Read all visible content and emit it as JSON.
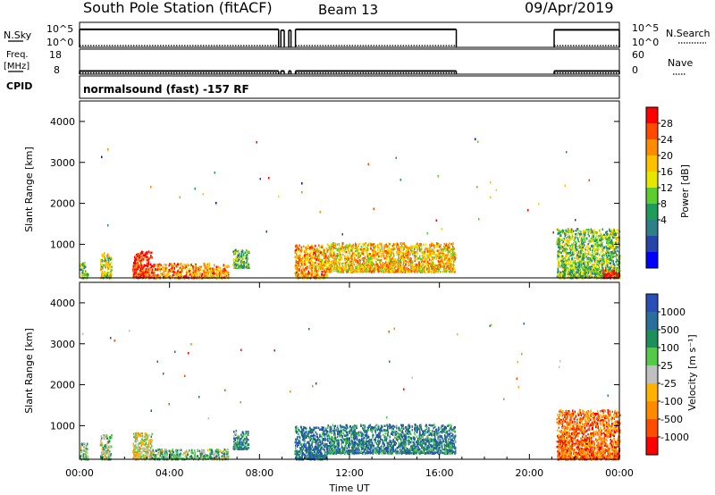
{
  "header": {
    "title": "South Pole Station (fitACF)",
    "beam": "Beam 13",
    "date": "09/Apr/2019"
  },
  "chart_data": [
    {
      "type": "line",
      "panel": "nsky-nsearch",
      "left_label": "N.Sky",
      "right_label": "N.Search",
      "left_ticks": [
        "10^5",
        "10^0"
      ],
      "right_ticks": [
        "10^5",
        "10^0"
      ],
      "series": [
        {
          "style": "solid",
          "segments": [
            [
              0.0,
              8.85,
              3.6
            ],
            [
              8.95,
              9.1,
              3.4
            ],
            [
              9.3,
              9.4,
              3.4
            ],
            [
              9.6,
              16.75,
              3.6
            ],
            [
              21.1,
              24.0,
              3.5
            ]
          ]
        },
        {
          "style": "dotted",
          "segments": [
            [
              0.0,
              8.85,
              0.35
            ],
            [
              9.6,
              16.75,
              0.35
            ],
            [
              21.1,
              24.0,
              0.35
            ]
          ]
        }
      ]
    },
    {
      "type": "line",
      "panel": "freq-nave",
      "left_label": "Freq.",
      "left_unit": "[MHz]",
      "right_label": "Nave",
      "left_ticks": [
        "18",
        "8"
      ],
      "right_ticks": [
        "60",
        "0"
      ],
      "series": [
        {
          "style": "solid",
          "segments": [
            [
              0.0,
              8.85,
              0.62
            ],
            [
              8.95,
              9.1,
              0.62
            ],
            [
              9.3,
              9.4,
              0.62
            ],
            [
              9.6,
              16.75,
              0.62
            ],
            [
              21.1,
              24.0,
              0.62
            ]
          ]
        },
        {
          "style": "dotted",
          "segments": [
            [
              0.0,
              8.85,
              0.25
            ],
            [
              9.6,
              16.75,
              0.25
            ],
            [
              21.1,
              24.0,
              0.25
            ]
          ]
        }
      ]
    },
    {
      "type": "heatmap",
      "panel": "cpid",
      "left_label": "CPID",
      "annotation": "normalsound (fast) -157 RF"
    },
    {
      "type": "heatmap",
      "panel": "power",
      "ylabel": "Slant Range [km]",
      "y_ticks": [
        "4000",
        "3000",
        "2000",
        "1000"
      ],
      "y_tick_values": [
        4000,
        3000,
        2000,
        1000
      ],
      "ylim": [
        180,
        4500
      ],
      "colorbar_label": "Power [dB]",
      "colorbar_ticks": [
        "28",
        "24",
        "20",
        "16",
        "12",
        "8",
        "4"
      ],
      "colorbar_colors": [
        "#ff0000",
        "#ff4a00",
        "#ff8c00",
        "#ffc000",
        "#e6e600",
        "#5ccc2e",
        "#1f9b5a",
        "#2d7f88",
        "#2545a8",
        "#0000ff"
      ],
      "scatter_regions": [
        {
          "x0": 0.0,
          "x1": 0.35,
          "r0": 200,
          "r1": 600,
          "value": 0.55
        },
        {
          "x0": 0.9,
          "x1": 1.4,
          "r0": 200,
          "r1": 800,
          "value": 0.45
        },
        {
          "x0": 2.35,
          "x1": 3.2,
          "r0": 200,
          "r1": 850,
          "value": 0.1
        },
        {
          "x0": 3.2,
          "x1": 6.6,
          "r0": 200,
          "r1": 550,
          "value": 0.25
        },
        {
          "x0": 6.8,
          "x1": 7.5,
          "r0": 450,
          "r1": 900,
          "value": 0.6
        },
        {
          "x0": 9.55,
          "x1": 11.0,
          "r0": 200,
          "r1": 1000,
          "value": 0.3
        },
        {
          "x0": 11.0,
          "x1": 16.7,
          "r0": 350,
          "r1": 1050,
          "value": 0.35
        },
        {
          "x0": 21.2,
          "x1": 24.0,
          "r0": 200,
          "r1": 1400,
          "value": 0.55
        },
        {
          "x0": 23.2,
          "x1": 24.0,
          "r0": 200,
          "r1": 400,
          "value": 0.05
        }
      ]
    },
    {
      "type": "heatmap",
      "panel": "velocity",
      "ylabel": "Slant Range [km]",
      "y_ticks": [
        "4000",
        "3000",
        "2000",
        "1000"
      ],
      "y_tick_values": [
        4000,
        3000,
        2000,
        1000
      ],
      "ylim": [
        180,
        4500
      ],
      "xlabel": "Time UT",
      "x_ticks": [
        "00:00",
        "04:00",
        "08:00",
        "12:00",
        "16:00",
        "20:00",
        "00:00"
      ],
      "x_tick_values": [
        0,
        4,
        8,
        12,
        16,
        20,
        24
      ],
      "xlim": [
        0,
        24
      ],
      "colorbar_label": "Velocity [m s⁻¹]",
      "colorbar_ticks": [
        "1000",
        "500",
        "100",
        "25",
        "-25",
        "-100",
        "-500",
        "-1000"
      ],
      "colorbar_colors": [
        "#2a4fb4",
        "#2a6e9a",
        "#1f8f5a",
        "#55c94a",
        "#c0c0c0",
        "#ffb300",
        "#ff8a00",
        "#ff4d00",
        "#ff0000"
      ],
      "scatter_regions": [
        {
          "x0": 0.0,
          "x1": 0.35,
          "r0": 200,
          "r1": 600,
          "value": 0.4
        },
        {
          "x0": 0.9,
          "x1": 1.4,
          "r0": 200,
          "r1": 800,
          "value": 0.4
        },
        {
          "x0": 2.35,
          "x1": 3.2,
          "r0": 200,
          "r1": 850,
          "value": 0.55
        },
        {
          "x0": 3.2,
          "x1": 6.6,
          "r0": 200,
          "r1": 450,
          "value": 0.4
        },
        {
          "x0": 6.8,
          "x1": 7.5,
          "r0": 450,
          "r1": 900,
          "value": 0.25
        },
        {
          "x0": 9.55,
          "x1": 11.0,
          "r0": 200,
          "r1": 1000,
          "value": 0.15
        },
        {
          "x0": 11.0,
          "x1": 16.7,
          "r0": 350,
          "r1": 1050,
          "value": 0.2
        },
        {
          "x0": 21.2,
          "x1": 24.0,
          "r0": 200,
          "r1": 1400,
          "value": 0.78
        }
      ]
    }
  ]
}
